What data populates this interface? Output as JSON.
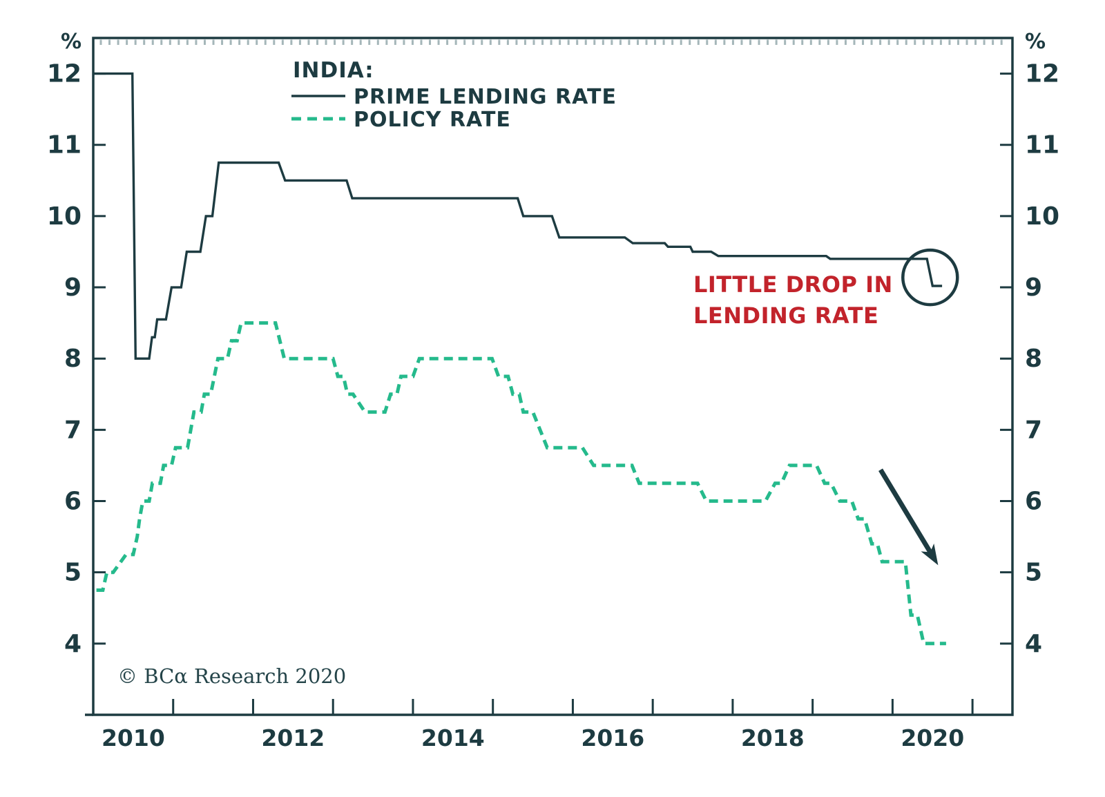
{
  "chart_data": {
    "type": "line",
    "title": "INDIA:",
    "unit": "%",
    "xlim": [
      2010,
      2021.5
    ],
    "ylim": [
      3.0,
      12.5
    ],
    "grid": false,
    "y_ticks": [
      4,
      5,
      6,
      7,
      8,
      9,
      10,
      11,
      12
    ],
    "x_tick_years": [
      2011,
      2012,
      2013,
      2014,
      2015,
      2016,
      2017,
      2018,
      2019,
      2020,
      2021
    ],
    "x_year_labels": [
      {
        "label": "2010",
        "year": 2010.5
      },
      {
        "label": "2012",
        "year": 2012.5
      },
      {
        "label": "2014",
        "year": 2014.5
      },
      {
        "label": "2016",
        "year": 2016.5
      },
      {
        "label": "2018",
        "year": 2018.5
      },
      {
        "label": "2020",
        "year": 2020.5
      }
    ],
    "series": [
      {
        "name": "PRIME LENDING RATE",
        "style": "solid",
        "color": "#1d3b41",
        "points": [
          [
            2010.0,
            12.0
          ],
          [
            2010.49,
            12.0
          ],
          [
            2010.53,
            8.0
          ],
          [
            2010.7,
            8.0
          ],
          [
            2010.735,
            8.3
          ],
          [
            2010.77,
            8.3
          ],
          [
            2010.8,
            8.55
          ],
          [
            2010.91,
            8.55
          ],
          [
            2010.98,
            9.0
          ],
          [
            2011.1,
            9.0
          ],
          [
            2011.17,
            9.5
          ],
          [
            2011.34,
            9.5
          ],
          [
            2011.41,
            10.0
          ],
          [
            2011.49,
            10.0
          ],
          [
            2011.57,
            10.75
          ],
          [
            2012.32,
            10.75
          ],
          [
            2012.4,
            10.5
          ],
          [
            2013.17,
            10.5
          ],
          [
            2013.24,
            10.25
          ],
          [
            2015.31,
            10.25
          ],
          [
            2015.38,
            10.0
          ],
          [
            2015.74,
            10.0
          ],
          [
            2015.83,
            9.7
          ],
          [
            2016.65,
            9.7
          ],
          [
            2016.75,
            9.62
          ],
          [
            2017.15,
            9.62
          ],
          [
            2017.19,
            9.57
          ],
          [
            2017.47,
            9.57
          ],
          [
            2017.5,
            9.5
          ],
          [
            2017.73,
            9.5
          ],
          [
            2017.82,
            9.44
          ],
          [
            2019.17,
            9.44
          ],
          [
            2019.22,
            9.4
          ],
          [
            2020.43,
            9.4
          ],
          [
            2020.5,
            9.02
          ],
          [
            2020.62,
            9.02
          ]
        ]
      },
      {
        "name": "POLICY RATE",
        "style": "dashed",
        "color": "#25ba8c",
        "points": [
          [
            2010.04,
            4.75
          ],
          [
            2010.12,
            4.75
          ],
          [
            2010.17,
            5.0
          ],
          [
            2010.25,
            5.0
          ],
          [
            2010.41,
            5.25
          ],
          [
            2010.5,
            5.25
          ],
          [
            2010.55,
            5.5
          ],
          [
            2010.58,
            5.75
          ],
          [
            2010.62,
            6.0
          ],
          [
            2010.7,
            6.0
          ],
          [
            2010.74,
            6.25
          ],
          [
            2010.84,
            6.25
          ],
          [
            2010.88,
            6.5
          ],
          [
            2010.98,
            6.5
          ],
          [
            2011.03,
            6.75
          ],
          [
            2011.18,
            6.75
          ],
          [
            2011.26,
            7.25
          ],
          [
            2011.35,
            7.25
          ],
          [
            2011.39,
            7.5
          ],
          [
            2011.47,
            7.5
          ],
          [
            2011.56,
            8.0
          ],
          [
            2011.68,
            8.0
          ],
          [
            2011.73,
            8.25
          ],
          [
            2011.8,
            8.25
          ],
          [
            2011.85,
            8.5
          ],
          [
            2012.28,
            8.5
          ],
          [
            2012.39,
            8.0
          ],
          [
            2013.0,
            8.0
          ],
          [
            2013.06,
            7.75
          ],
          [
            2013.13,
            7.75
          ],
          [
            2013.18,
            7.5
          ],
          [
            2013.25,
            7.5
          ],
          [
            2013.4,
            7.25
          ],
          [
            2013.65,
            7.25
          ],
          [
            2013.72,
            7.5
          ],
          [
            2013.8,
            7.5
          ],
          [
            2013.85,
            7.75
          ],
          [
            2014.0,
            7.75
          ],
          [
            2014.08,
            8.0
          ],
          [
            2014.99,
            8.0
          ],
          [
            2015.07,
            7.75
          ],
          [
            2015.19,
            7.75
          ],
          [
            2015.25,
            7.5
          ],
          [
            2015.33,
            7.5
          ],
          [
            2015.38,
            7.25
          ],
          [
            2015.5,
            7.25
          ],
          [
            2015.68,
            6.75
          ],
          [
            2016.12,
            6.75
          ],
          [
            2016.26,
            6.5
          ],
          [
            2016.74,
            6.5
          ],
          [
            2016.83,
            6.25
          ],
          [
            2017.56,
            6.25
          ],
          [
            2017.67,
            6.0
          ],
          [
            2018.41,
            6.0
          ],
          [
            2018.53,
            6.25
          ],
          [
            2018.61,
            6.25
          ],
          [
            2018.71,
            6.5
          ],
          [
            2019.05,
            6.5
          ],
          [
            2019.15,
            6.25
          ],
          [
            2019.23,
            6.25
          ],
          [
            2019.34,
            6.0
          ],
          [
            2019.49,
            6.0
          ],
          [
            2019.57,
            5.75
          ],
          [
            2019.65,
            5.75
          ],
          [
            2019.74,
            5.4
          ],
          [
            2019.81,
            5.4
          ],
          [
            2019.87,
            5.15
          ],
          [
            2020.16,
            5.15
          ],
          [
            2020.23,
            4.4
          ],
          [
            2020.31,
            4.4
          ],
          [
            2020.39,
            4.0
          ],
          [
            2020.67,
            4.0
          ]
        ]
      }
    ],
    "annotations": {
      "callout_lines": [
        "LITTLE DROP IN",
        "LENDING RATE"
      ],
      "callout_color": "#c2232b",
      "circle": {
        "year": 2020.47,
        "value": 9.14,
        "radius_px": 39.5
      },
      "arrow": {
        "from": [
          2019.85,
          6.44
        ],
        "to": [
          2020.57,
          5.1
        ]
      }
    }
  },
  "legend": {
    "title": "INDIA:",
    "items": [
      {
        "label": "PRIME LENDING RATE"
      },
      {
        "label": "POLICY RATE"
      }
    ]
  },
  "footer": {
    "copyright": "© BCα Research 2020"
  }
}
